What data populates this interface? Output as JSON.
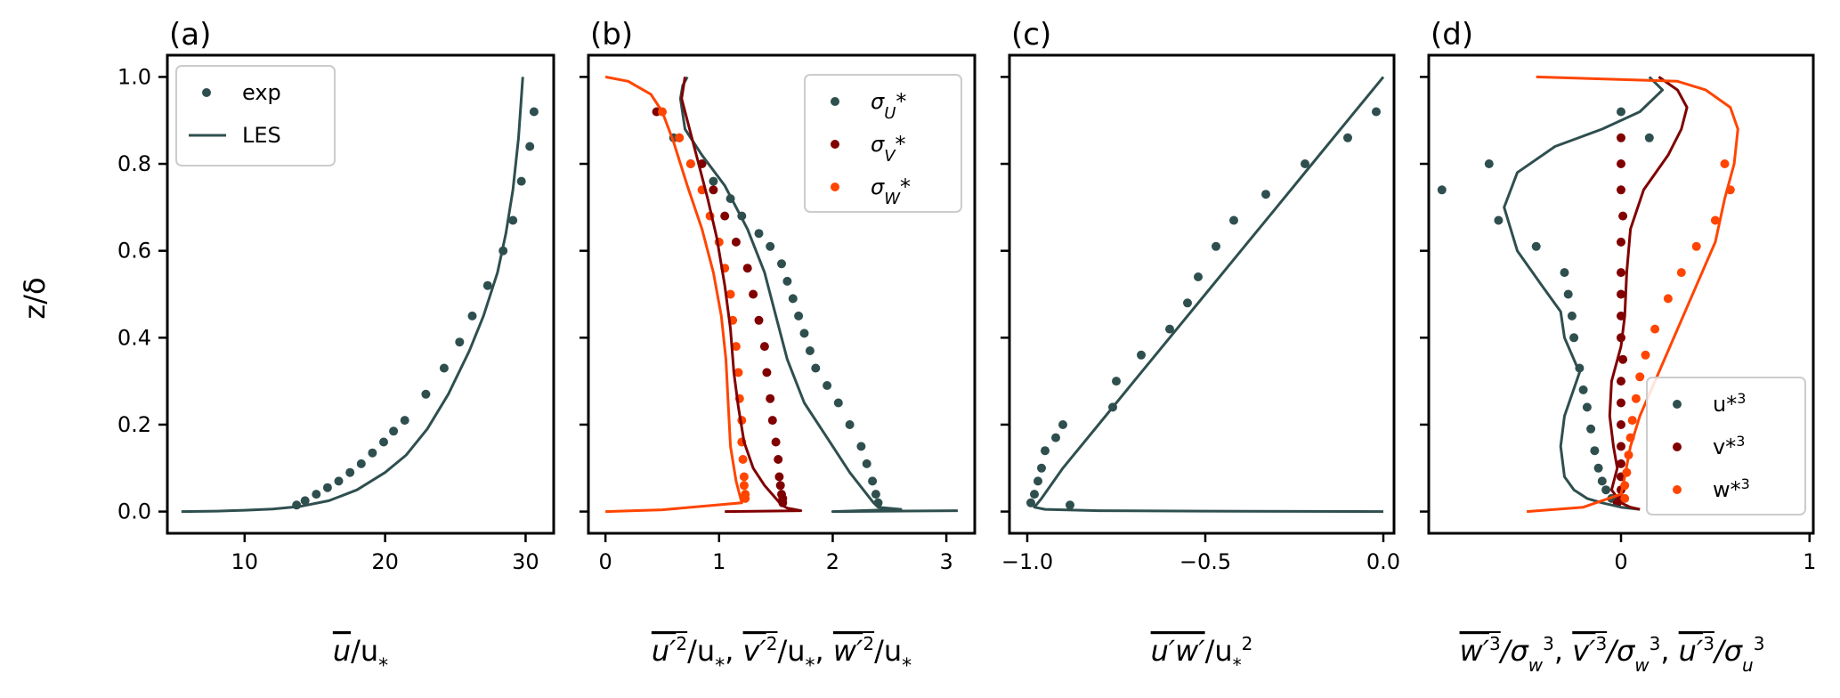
{
  "figure": {
    "ylabel": "z/δ",
    "colors": {
      "u": "#2f4f4f",
      "v": "#800000",
      "w": "#ff4500"
    }
  },
  "chart_data": [
    {
      "type": "scatter",
      "panel_label": "(a)",
      "xlabel": "ū/u*",
      "xlim": [
        4.5,
        32
      ],
      "ylim": [
        -0.05,
        1.05
      ],
      "xticks": [
        10,
        20,
        30
      ],
      "yticks": [
        0.0,
        0.2,
        0.4,
        0.6,
        0.8,
        1.0
      ],
      "legend": {
        "position": "top-left",
        "entries": [
          "exp",
          "LES"
        ]
      },
      "series": [
        {
          "name": "exp",
          "kind": "points",
          "color": "#2f4f4f",
          "x": [
            13.7,
            14.3,
            15.1,
            15.9,
            16.7,
            17.5,
            18.3,
            19.1,
            19.9,
            20.6,
            21.4,
            22.9,
            24.2,
            25.3,
            26.2,
            27.3,
            28.4,
            29.1,
            29.7,
            30.3,
            30.6
          ],
          "y": [
            0.015,
            0.025,
            0.04,
            0.055,
            0.07,
            0.09,
            0.11,
            0.135,
            0.16,
            0.185,
            0.21,
            0.27,
            0.33,
            0.39,
            0.45,
            0.52,
            0.6,
            0.67,
            0.76,
            0.84,
            0.92
          ]
        },
        {
          "name": "LES",
          "kind": "line",
          "color": "#2f4f4f",
          "x": [
            5.5,
            8,
            10,
            12,
            14,
            16,
            18,
            20,
            21.5,
            23,
            24.5,
            26,
            27,
            28,
            28.6,
            29.1,
            29.5,
            29.8
          ],
          "y": [
            0.0,
            0.001,
            0.003,
            0.006,
            0.012,
            0.025,
            0.05,
            0.09,
            0.13,
            0.19,
            0.27,
            0.37,
            0.45,
            0.55,
            0.64,
            0.74,
            0.86,
            1.0
          ]
        }
      ]
    },
    {
      "type": "scatter",
      "panel_label": "(b)",
      "xlabel": "u′²/u*, v′²/u*, w′²/u*",
      "xlim": [
        -0.15,
        3.25
      ],
      "ylim": [
        -0.05,
        1.05
      ],
      "xticks": [
        0,
        1,
        2,
        3
      ],
      "legend": {
        "position": "top-right",
        "entries": [
          "σU*",
          "σV*",
          "σW*"
        ]
      },
      "series": [
        {
          "name": "σU*",
          "kind": "points",
          "color": "#2f4f4f",
          "x": [
            0.6,
            0.75,
            0.95,
            1.1,
            1.2,
            1.35,
            1.45,
            1.55,
            1.6,
            1.65,
            1.7,
            1.75,
            1.8,
            1.85,
            1.95,
            2.05,
            2.15,
            2.25,
            2.3,
            2.35,
            2.38,
            2.4
          ],
          "y": [
            0.86,
            0.8,
            0.76,
            0.72,
            0.68,
            0.64,
            0.61,
            0.57,
            0.53,
            0.49,
            0.45,
            0.41,
            0.37,
            0.33,
            0.29,
            0.25,
            0.2,
            0.15,
            0.11,
            0.07,
            0.04,
            0.02
          ]
        },
        {
          "name": "σV*",
          "kind": "points",
          "color": "#800000",
          "x": [
            0.45,
            0.65,
            0.85,
            0.95,
            1.05,
            1.15,
            1.25,
            1.3,
            1.35,
            1.4,
            1.42,
            1.45,
            1.47,
            1.5,
            1.52,
            1.53,
            1.54,
            1.55,
            1.56,
            1.56
          ],
          "y": [
            0.92,
            0.86,
            0.8,
            0.74,
            0.68,
            0.62,
            0.56,
            0.5,
            0.44,
            0.38,
            0.32,
            0.26,
            0.21,
            0.16,
            0.12,
            0.08,
            0.06,
            0.04,
            0.03,
            0.02
          ]
        },
        {
          "name": "σW*",
          "kind": "points",
          "color": "#ff4500",
          "x": [
            0.5,
            0.65,
            0.75,
            0.85,
            0.92,
            1.0,
            1.05,
            1.1,
            1.12,
            1.15,
            1.17,
            1.18,
            1.2,
            1.2,
            1.21,
            1.22,
            1.22,
            1.23,
            1.23
          ],
          "y": [
            0.92,
            0.86,
            0.8,
            0.74,
            0.68,
            0.62,
            0.56,
            0.5,
            0.44,
            0.38,
            0.32,
            0.26,
            0.21,
            0.16,
            0.12,
            0.08,
            0.06,
            0.04,
            0.03
          ]
        },
        {
          "name": "LES u",
          "kind": "line",
          "color": "#2f4f4f",
          "x": [
            0.72,
            0.68,
            0.66,
            0.7,
            0.85,
            1.05,
            1.25,
            1.4,
            1.5,
            1.6,
            1.75,
            1.95,
            2.15,
            2.3,
            2.36,
            2.4,
            2.6,
            2.0,
            3.1
          ],
          "y": [
            1.0,
            0.98,
            0.95,
            0.88,
            0.82,
            0.75,
            0.65,
            0.55,
            0.45,
            0.35,
            0.25,
            0.17,
            0.09,
            0.04,
            0.02,
            0.01,
            0.005,
            0.0,
            0.002
          ]
        },
        {
          "name": "LES v",
          "kind": "line",
          "color": "#800000",
          "x": [
            0.7,
            0.67,
            0.72,
            0.8,
            0.9,
            0.98,
            1.05,
            1.1,
            1.13,
            1.17,
            1.22,
            1.3,
            1.4,
            1.5,
            1.55,
            1.6,
            1.72,
            1.05
          ],
          "y": [
            1.0,
            0.95,
            0.9,
            0.82,
            0.72,
            0.63,
            0.52,
            0.42,
            0.32,
            0.24,
            0.16,
            0.1,
            0.06,
            0.03,
            0.015,
            0.008,
            0.002,
            0.0
          ]
        },
        {
          "name": "LES w",
          "kind": "line",
          "color": "#ff4500",
          "x": [
            0.0,
            0.2,
            0.4,
            0.5,
            0.6,
            0.72,
            0.85,
            0.95,
            1.02,
            1.06,
            1.08,
            1.1,
            1.15,
            1.2,
            0.5,
            0.0
          ],
          "y": [
            1.0,
            0.99,
            0.96,
            0.92,
            0.85,
            0.75,
            0.65,
            0.55,
            0.45,
            0.35,
            0.25,
            0.15,
            0.07,
            0.02,
            0.004,
            0.0
          ]
        }
      ]
    },
    {
      "type": "scatter",
      "panel_label": "(c)",
      "xlabel": "u′w′/u*²",
      "xlim": [
        -1.05,
        0.03
      ],
      "ylim": [
        -0.05,
        1.05
      ],
      "xticks": [
        -1.0,
        -0.5,
        0.0
      ],
      "xticklabels": [
        "−1.0",
        "−0.5",
        "0.0"
      ],
      "series": [
        {
          "name": "exp",
          "kind": "points",
          "color": "#2f4f4f",
          "x": [
            -0.99,
            -0.98,
            -0.97,
            -0.96,
            -0.95,
            -0.92,
            -0.9,
            -0.88,
            -0.76,
            -0.75,
            -0.68,
            -0.6,
            -0.55,
            -0.52,
            -0.47,
            -0.42,
            -0.33,
            -0.22,
            -0.1,
            -0.02
          ],
          "y": [
            0.02,
            0.04,
            0.07,
            0.1,
            0.14,
            0.17,
            0.2,
            0.015,
            0.24,
            0.3,
            0.36,
            0.42,
            0.48,
            0.54,
            0.61,
            0.67,
            0.73,
            0.8,
            0.86,
            0.92
          ]
        },
        {
          "name": "LES",
          "kind": "line",
          "color": "#2f4f4f",
          "x": [
            0.0,
            -0.1,
            -0.2,
            -0.3,
            -0.4,
            -0.5,
            -0.6,
            -0.7,
            -0.8,
            -0.9,
            -0.96,
            -0.98,
            -0.95,
            -0.8,
            -0.5,
            0.0
          ],
          "y": [
            1.0,
            0.9,
            0.8,
            0.7,
            0.6,
            0.5,
            0.4,
            0.3,
            0.2,
            0.1,
            0.03,
            0.01,
            0.005,
            0.002,
            0.001,
            0.0
          ]
        }
      ]
    },
    {
      "type": "scatter",
      "panel_label": "(d)",
      "xlabel": "w′³/σw³, v′³/σw³, u′³/σu³",
      "xlim": [
        -1.02,
        1.02
      ],
      "ylim": [
        -0.05,
        1.05
      ],
      "xticks": [
        0,
        1
      ],
      "legend": {
        "position": "bottom-right",
        "entries": [
          "u*³",
          "v*³",
          "w*³"
        ]
      },
      "series": [
        {
          "name": "u*³",
          "kind": "points",
          "color": "#2f4f4f",
          "x": [
            -0.95,
            -0.7,
            -0.65,
            -0.45,
            -0.3,
            -0.28,
            -0.26,
            -0.25,
            -0.22,
            -0.2,
            -0.18,
            -0.16,
            -0.14,
            -0.12,
            -0.1,
            -0.08,
            -0.05,
            -0.02,
            0.0,
            0.15
          ],
          "y": [
            0.74,
            0.8,
            0.67,
            0.61,
            0.55,
            0.5,
            0.45,
            0.4,
            0.33,
            0.28,
            0.24,
            0.19,
            0.14,
            0.1,
            0.07,
            0.05,
            0.03,
            0.02,
            0.92,
            0.86
          ]
        },
        {
          "name": "v*³",
          "kind": "points",
          "color": "#800000",
          "x": [
            0.0,
            0.0,
            0.0,
            0.01,
            0.0,
            0.0,
            0.0,
            0.0,
            0.0,
            0.01,
            0.0,
            0.0,
            0.0,
            0.0,
            0.0,
            0.0,
            0.0,
            0.0,
            -0.02
          ],
          "y": [
            0.86,
            0.8,
            0.74,
            0.68,
            0.62,
            0.55,
            0.5,
            0.45,
            0.4,
            0.35,
            0.3,
            0.25,
            0.2,
            0.15,
            0.11,
            0.08,
            0.05,
            0.03,
            0.02
          ]
        },
        {
          "name": "w*³",
          "kind": "points",
          "color": "#ff4500",
          "x": [
            0.55,
            0.58,
            0.5,
            0.4,
            0.32,
            0.25,
            0.18,
            0.13,
            0.1,
            0.08,
            0.06,
            0.05,
            0.04,
            0.03,
            0.02,
            0.02
          ],
          "y": [
            0.8,
            0.74,
            0.67,
            0.61,
            0.55,
            0.49,
            0.42,
            0.36,
            0.31,
            0.26,
            0.21,
            0.17,
            0.13,
            0.09,
            0.06,
            0.03
          ]
        },
        {
          "name": "LES u",
          "kind": "line",
          "color": "#2f4f4f",
          "x": [
            0.15,
            0.22,
            0.1,
            -0.1,
            -0.35,
            -0.55,
            -0.62,
            -0.55,
            -0.42,
            -0.32,
            -0.3,
            -0.22,
            -0.3,
            -0.32,
            -0.3,
            -0.25,
            -0.18,
            -0.1,
            0.0,
            0.1
          ],
          "y": [
            1.0,
            0.97,
            0.92,
            0.88,
            0.84,
            0.78,
            0.7,
            0.6,
            0.52,
            0.46,
            0.4,
            0.32,
            0.22,
            0.15,
            0.08,
            0.05,
            0.03,
            0.02,
            0.01,
            0.005
          ]
        },
        {
          "name": "LES v",
          "kind": "line",
          "color": "#800000",
          "x": [
            0.2,
            0.3,
            0.35,
            0.32,
            0.25,
            0.12,
            0.05,
            0.03,
            0.02,
            0.0,
            -0.05,
            -0.06,
            -0.04,
            -0.02,
            -0.05,
            0.0,
            0.05,
            0.1
          ],
          "y": [
            1.0,
            0.97,
            0.93,
            0.88,
            0.82,
            0.74,
            0.65,
            0.55,
            0.45,
            0.38,
            0.3,
            0.22,
            0.15,
            0.1,
            0.05,
            0.02,
            0.01,
            0.005
          ]
        },
        {
          "name": "LES w",
          "kind": "line",
          "color": "#ff4500",
          "x": [
            -0.45,
            0.3,
            0.45,
            0.58,
            0.62,
            0.6,
            0.55,
            0.5,
            0.4,
            0.3,
            0.2,
            0.1,
            0.05,
            0.02,
            0.0,
            -0.2,
            -0.5
          ],
          "y": [
            1.0,
            0.99,
            0.97,
            0.93,
            0.88,
            0.8,
            0.72,
            0.62,
            0.52,
            0.42,
            0.32,
            0.22,
            0.15,
            0.08,
            0.04,
            0.01,
            0.0
          ]
        }
      ]
    }
  ]
}
